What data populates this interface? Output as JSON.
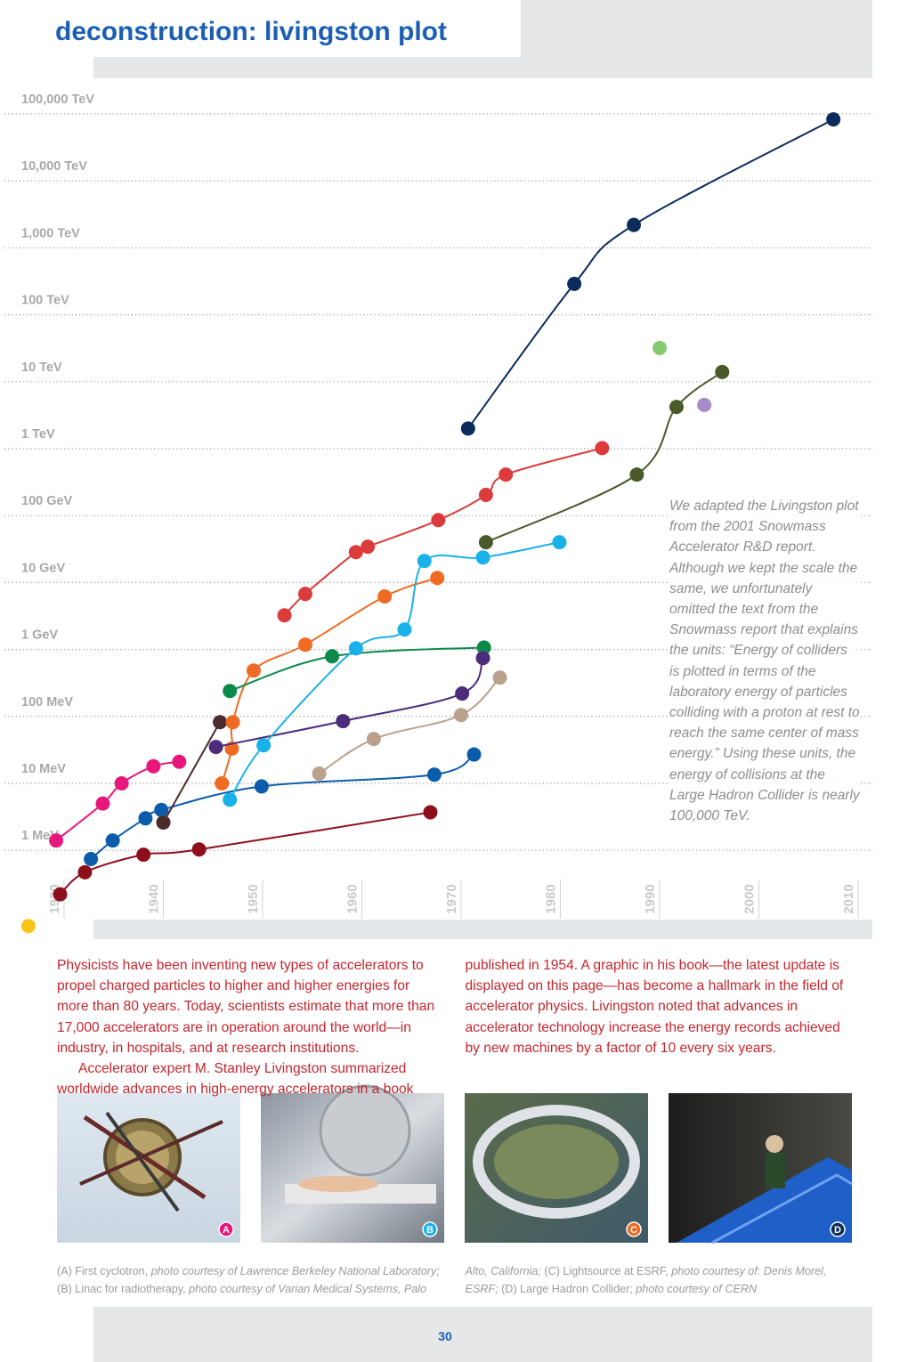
{
  "chart_data": {
    "type": "line",
    "title": "deconstruction: livingston plot",
    "yscale": "log",
    "grid": true,
    "ylim": [
      0.05,
      200000000000
    ],
    "yticks": [
      {
        "value": 1,
        "label": "1 MeV"
      },
      {
        "value": 10,
        "label": "10 MeV"
      },
      {
        "value": 100,
        "label": "100 MeV"
      },
      {
        "value": 1000,
        "label": "1 GeV"
      },
      {
        "value": 10000,
        "label": "10 GeV"
      },
      {
        "value": 100000,
        "label": "100 GeV"
      },
      {
        "value": 1000000,
        "label": "1 TeV"
      },
      {
        "value": 10000000,
        "label": "10 TeV"
      },
      {
        "value": 100000000,
        "label": "100 TeV"
      },
      {
        "value": 1000000000,
        "label": "1,000 TeV"
      },
      {
        "value": 10000000000,
        "label": "10,000 TeV"
      },
      {
        "value": 100000000000,
        "label": "100,000 TeV"
      }
    ],
    "xlim": [
      1927,
      2012
    ],
    "xticks": [
      1930,
      1940,
      1950,
      1960,
      1970,
      1980,
      1990,
      2000,
      2010
    ],
    "series": [
      {
        "color": "#8e0f1c",
        "x": [
          1930.5,
          1933.0,
          1938.9,
          1944.5,
          1967.8
        ],
        "values": [
          0.22,
          0.47,
          0.86,
          1.03,
          3.7
        ]
      },
      {
        "color": "#e8177c",
        "x": [
          1930.1,
          1934.8,
          1936.7,
          1939.9,
          1942.5
        ],
        "values": [
          1.4,
          5,
          10,
          18,
          21
        ]
      },
      {
        "color": "#0b5cab",
        "x": [
          1933.6,
          1935.8,
          1939.1,
          1940.7,
          1950.8,
          1968.2,
          1972.2
        ],
        "values": [
          0.74,
          1.4,
          3,
          4,
          9,
          13.5,
          27
        ]
      },
      {
        "color": "#4b2b2b",
        "x": [
          1940.9,
          1946.6
        ],
        "values": [
          2.6,
          82
        ]
      },
      {
        "color": "#ef6a23",
        "x": [
          1946.8,
          1947.8,
          1947.9,
          1950.0,
          1955.2,
          1963.2,
          1968.5
        ],
        "values": [
          10,
          33,
          82,
          485,
          1180,
          6200,
          11700
        ]
      },
      {
        "color": "#0b8a4b",
        "x": [
          1947.6,
          1957.9,
          1973.2
        ],
        "values": [
          240,
          790,
          1070
        ]
      },
      {
        "color": "#4b2d7c",
        "x": [
          1946.2,
          1959.0,
          1971.0,
          1973.1
        ],
        "values": [
          35,
          85,
          220,
          745
        ]
      },
      {
        "color": "#b9a18b",
        "x": [
          1956.6,
          1962.1,
          1970.9,
          1974.8
        ],
        "values": [
          14,
          46,
          105,
          380
        ]
      },
      {
        "color": "#1ab1ea",
        "x": [
          1947.6,
          1951.0,
          1960.3,
          1965.2,
          1967.2,
          1973.1,
          1980.8
        ],
        "values": [
          5.7,
          37,
          1040,
          1990,
          21000,
          23700,
          40000
        ]
      },
      {
        "color": "#dc3b3b",
        "x": [
          1953.1,
          1955.2,
          1960.3,
          1961.5,
          1968.6,
          1973.4,
          1975.4,
          1985.1
        ],
        "values": [
          3240,
          6760,
          28500,
          34300,
          85600,
          204000,
          410000,
          1020000
        ]
      },
      {
        "color": "#4b5a2a",
        "x": [
          1973.4,
          1988.6,
          1992.6,
          1997.2
        ],
        "values": [
          40000,
          410000,
          4200000,
          14000000
        ]
      },
      {
        "color": "#0b2b5c",
        "x": [
          1971.6,
          1982.3,
          1988.3,
          2008.4
        ],
        "values": [
          2000000,
          290000000,
          2200000000,
          83000000000
        ]
      },
      {
        "color": "#86c96e",
        "x": [
          1990.9
        ],
        "values": [
          32000000
        ]
      },
      {
        "color": "#a68bc6",
        "x": [
          1995.4
        ],
        "values": [
          4500000
        ]
      },
      {
        "color": "#f7c51a",
        "x": [
          1927.3
        ],
        "values": [
          0.074
        ]
      }
    ],
    "annotation": "We adapted the Livingston plot from the 2001 Snowmass Accelerator R&D report. Although we kept the scale the same, we unfortunately omitted the text from the Snowmass report that explains the units: “Energy of colliders is plotted in terms of the laboratory energy of particles colliding with a proton at rest to reach the same center of mass energy.” Using these units, the energy of collisions at the Large Hadron Collider is nearly 100,000 TeV."
  },
  "body": {
    "paragraphs": [
      "Physicists have been inventing new types of accelerators to propel charged particles to higher and higher energies for more than 80 years. Today, scientists estimate that more than 17,000 accelerators are in operation around the world—in industry, in hospitals, and at research institutions.",
      "Accelerator expert M. Stanley Livingston summarized worldwide advances in high-energy accelerators in a book published in 1954. A graphic in his book—the latest update is displayed on this page—has become a hallmark in the field of accelerator physics. Livingston noted that advances in accelerator technology increase the energy records achieved by new machines by a factor of 10 every six years."
    ]
  },
  "figures": [
    {
      "badge": "A",
      "color": "#e8177c"
    },
    {
      "badge": "B",
      "color": "#1ab1ea"
    },
    {
      "badge": "C",
      "color": "#ef6a23"
    },
    {
      "badge": "D",
      "color": "#0b2b5c"
    }
  ],
  "caption": [
    {
      "text": "(A) First cyclotron, ",
      "style": "normal"
    },
    {
      "text": "photo courtesy of Lawrence Berkeley National Laboratory;",
      "style": "italic"
    },
    {
      "text": " (B) Linac for radiotherapy, ",
      "style": "normal"
    },
    {
      "text": "photo courtesy of Varian Medical Systems, Palo Alto, California;",
      "style": "italic"
    },
    {
      "text": " (C) Lightsource at ESRF, ",
      "style": "normal"
    },
    {
      "text": "photo courtesy of: Denis Morel, ESRF;",
      "style": "italic"
    },
    {
      "text": " (D) Large Hadron Collider; ",
      "style": "normal"
    },
    {
      "text": "photo courtesy of CERN",
      "style": "italic"
    }
  ],
  "page_number": "30"
}
